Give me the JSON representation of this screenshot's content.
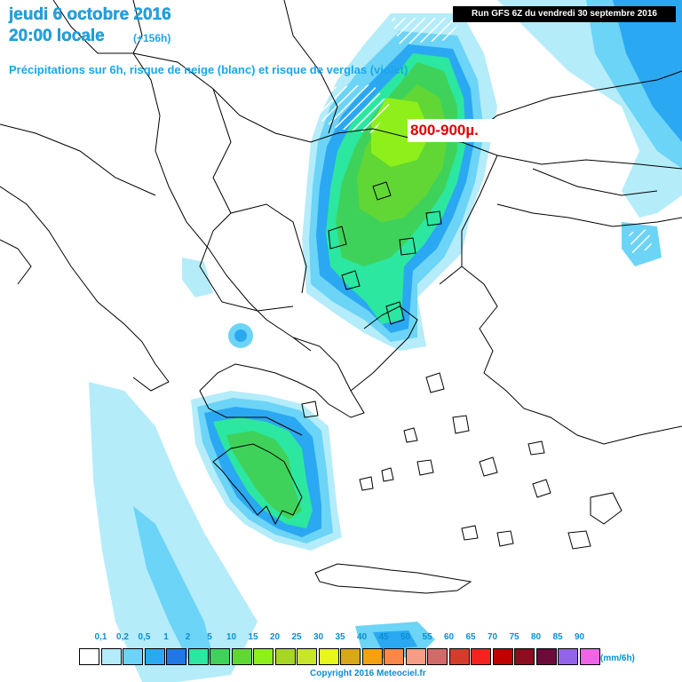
{
  "header": {
    "date": "jeudi 6 octobre 2016",
    "time": "20:00 locale",
    "offset": "(+156h)",
    "subtitle": "Précipitations sur 6h, risque de neige (blanc) et risque de verglas (violet)",
    "run": "Run GFS 6Z du vendredi 30 septembre 2016"
  },
  "annotation": {
    "text": "800-900µ.",
    "color": "#e00000"
  },
  "legend": {
    "unit": "(mm/6h)",
    "ticks": [
      "0,1",
      "0,2",
      "0,5",
      "1",
      "2",
      "5",
      "10",
      "15",
      "20",
      "25",
      "30",
      "35",
      "40",
      "45",
      "50",
      "55",
      "60",
      "65",
      "70",
      "75",
      "80",
      "85",
      "90"
    ],
    "colors": [
      "#ffffff",
      "#b4ecfa",
      "#6cd4f6",
      "#2aa8f2",
      "#1f78e6",
      "#2be7a0",
      "#3fd25a",
      "#61d736",
      "#8ef01a",
      "#a8d624",
      "#c7e62a",
      "#e8f61c",
      "#d9a71a",
      "#f4a20d",
      "#fa8848",
      "#f39e85",
      "#d36a6a",
      "#d33e2c",
      "#f5221e",
      "#c00000",
      "#8c0d1e",
      "#6e0a3a",
      "#9464e8",
      "#f064e8"
    ]
  },
  "copyright": "Copyright 2016 Meteociel.fr",
  "map": {
    "land_color": "#ffffff",
    "border_color": "#000000",
    "snow_hatch_color": "#ffffff"
  }
}
